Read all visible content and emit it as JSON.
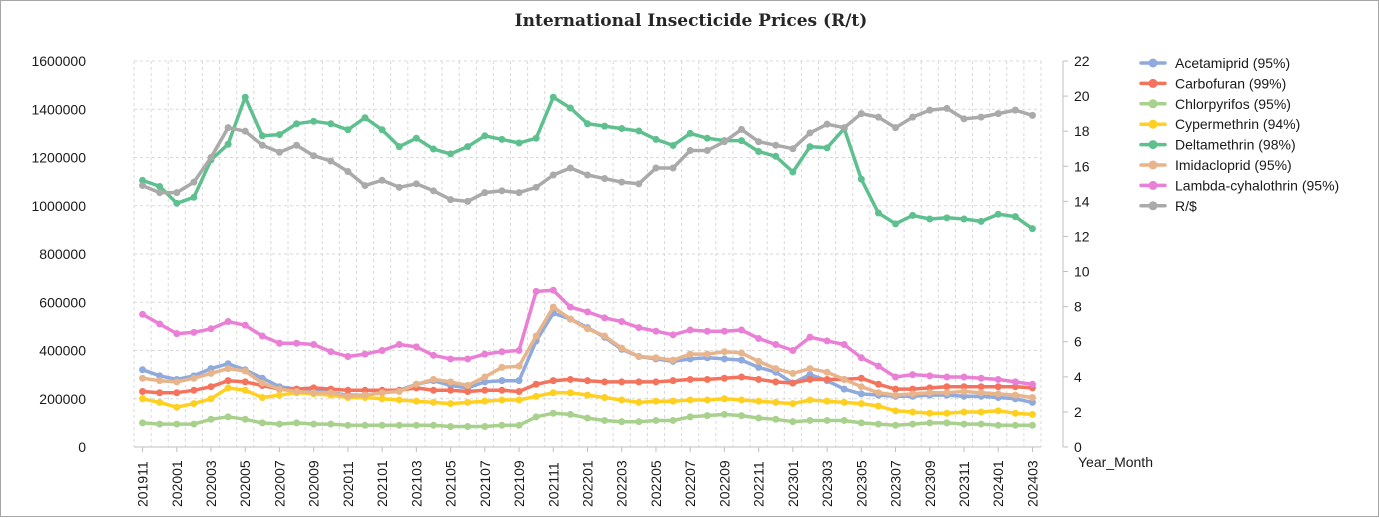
{
  "chart_data": {
    "type": "line",
    "title": "International Insecticide Prices (R/t)",
    "xlabel": "Year_Month",
    "ylabel": "",
    "y2label": "",
    "ylim": [
      0,
      1600000
    ],
    "yticks": [
      0,
      200000,
      400000,
      600000,
      800000,
      1000000,
      1200000,
      1400000,
      1600000
    ],
    "y2lim": [
      0,
      22
    ],
    "y2ticks": [
      0,
      2,
      4,
      6,
      8,
      10,
      12,
      14,
      16,
      18,
      20,
      22
    ],
    "grid": true,
    "legend_position": "right",
    "x": [
      "201911",
      "201912",
      "202001",
      "202002",
      "202003",
      "202004",
      "202005",
      "202006",
      "202007",
      "202008",
      "202009",
      "202010",
      "202011",
      "202012",
      "202101",
      "202102",
      "202103",
      "202104",
      "202105",
      "202106",
      "202107",
      "202108",
      "202109",
      "202110",
      "202111",
      "202112",
      "202201",
      "202202",
      "202203",
      "202204",
      "202205",
      "202206",
      "202207",
      "202208",
      "202209",
      "202210",
      "202211",
      "202212",
      "202301",
      "202302",
      "202303",
      "202304",
      "202305",
      "202306",
      "202307",
      "202308",
      "202309",
      "202310",
      "202311",
      "202312",
      "202401",
      "202402",
      "202403"
    ],
    "x_tick_labels": [
      "201911",
      "202001",
      "202003",
      "202005",
      "202007",
      "202009",
      "202011",
      "202101",
      "202103",
      "202105",
      "202107",
      "202109",
      "202111",
      "202201",
      "202203",
      "202205",
      "202207",
      "202209",
      "202211",
      "202301",
      "202303",
      "202305",
      "202307",
      "202309",
      "202311",
      "202401",
      "202403"
    ],
    "series": [
      {
        "name": "Acetamiprid (95%)",
        "axis": "left",
        "color": "#8faadc",
        "values": [
          320000,
          295000,
          280000,
          295000,
          325000,
          345000,
          320000,
          285000,
          250000,
          240000,
          235000,
          225000,
          215000,
          215000,
          225000,
          235000,
          260000,
          275000,
          255000,
          245000,
          270000,
          275000,
          275000,
          440000,
          555000,
          530000,
          495000,
          455000,
          405000,
          375000,
          365000,
          355000,
          365000,
          370000,
          365000,
          360000,
          330000,
          310000,
          265000,
          300000,
          275000,
          240000,
          220000,
          215000,
          210000,
          210000,
          215000,
          215000,
          210000,
          210000,
          205000,
          200000,
          185000
        ]
      },
      {
        "name": "Carbofuran (99%)",
        "axis": "left",
        "color": "#f4735c",
        "values": [
          230000,
          225000,
          225000,
          235000,
          250000,
          275000,
          270000,
          255000,
          240000,
          240000,
          245000,
          240000,
          235000,
          235000,
          235000,
          235000,
          245000,
          235000,
          235000,
          230000,
          235000,
          235000,
          230000,
          260000,
          275000,
          280000,
          275000,
          270000,
          270000,
          270000,
          270000,
          275000,
          280000,
          280000,
          285000,
          290000,
          280000,
          270000,
          265000,
          280000,
          280000,
          280000,
          285000,
          260000,
          240000,
          240000,
          245000,
          250000,
          250000,
          250000,
          250000,
          250000,
          245000
        ]
      },
      {
        "name": "Chlorpyrifos (95%)",
        "axis": "left",
        "color": "#a9d18e",
        "values": [
          100000,
          95000,
          95000,
          95000,
          115000,
          125000,
          115000,
          100000,
          95000,
          100000,
          95000,
          95000,
          90000,
          90000,
          90000,
          90000,
          90000,
          90000,
          85000,
          85000,
          85000,
          90000,
          90000,
          125000,
          140000,
          135000,
          120000,
          110000,
          105000,
          105000,
          110000,
          110000,
          125000,
          130000,
          135000,
          130000,
          120000,
          115000,
          105000,
          110000,
          110000,
          110000,
          100000,
          95000,
          90000,
          95000,
          100000,
          100000,
          95000,
          95000,
          90000,
          90000,
          90000
        ]
      },
      {
        "name": "Cypermethrin (94%)",
        "axis": "left",
        "color": "#ffd020",
        "values": [
          200000,
          185000,
          165000,
          180000,
          200000,
          245000,
          235000,
          205000,
          215000,
          225000,
          220000,
          215000,
          205000,
          205000,
          200000,
          195000,
          190000,
          185000,
          180000,
          185000,
          190000,
          195000,
          195000,
          210000,
          225000,
          225000,
          215000,
          205000,
          195000,
          185000,
          190000,
          190000,
          195000,
          195000,
          200000,
          195000,
          190000,
          185000,
          180000,
          195000,
          190000,
          185000,
          180000,
          170000,
          150000,
          145000,
          140000,
          140000,
          145000,
          145000,
          150000,
          140000,
          135000
        ]
      },
      {
        "name": "Deltamethrin (98%)",
        "axis": "left",
        "color": "#5fc08f",
        "values": [
          1105000,
          1080000,
          1010000,
          1035000,
          1190000,
          1255000,
          1450000,
          1290000,
          1295000,
          1340000,
          1350000,
          1340000,
          1315000,
          1365000,
          1315000,
          1245000,
          1280000,
          1235000,
          1215000,
          1245000,
          1290000,
          1275000,
          1260000,
          1280000,
          1450000,
          1405000,
          1340000,
          1330000,
          1320000,
          1310000,
          1275000,
          1250000,
          1300000,
          1280000,
          1270000,
          1270000,
          1225000,
          1205000,
          1140000,
          1245000,
          1240000,
          1320000,
          1110000,
          970000,
          925000,
          960000,
          945000,
          950000,
          945000,
          935000,
          965000,
          955000,
          905000
        ]
      },
      {
        "name": "Imidacloprid (95%)",
        "axis": "left",
        "color": "#e8b48c",
        "values": [
          285000,
          275000,
          270000,
          285000,
          305000,
          325000,
          315000,
          265000,
          240000,
          230000,
          225000,
          225000,
          210000,
          215000,
          225000,
          230000,
          260000,
          280000,
          270000,
          255000,
          290000,
          330000,
          335000,
          460000,
          580000,
          530000,
          490000,
          460000,
          410000,
          375000,
          370000,
          360000,
          385000,
          385000,
          395000,
          390000,
          355000,
          325000,
          305000,
          325000,
          310000,
          280000,
          250000,
          225000,
          215000,
          220000,
          225000,
          225000,
          230000,
          225000,
          220000,
          215000,
          205000
        ]
      },
      {
        "name": "Lambda-cyhalothrin (95%)",
        "axis": "left",
        "color": "#ea80d6",
        "values": [
          550000,
          510000,
          470000,
          475000,
          490000,
          520000,
          505000,
          460000,
          430000,
          430000,
          425000,
          395000,
          375000,
          385000,
          400000,
          425000,
          415000,
          380000,
          365000,
          365000,
          385000,
          395000,
          400000,
          645000,
          650000,
          580000,
          560000,
          535000,
          520000,
          495000,
          480000,
          465000,
          485000,
          480000,
          480000,
          485000,
          450000,
          425000,
          400000,
          455000,
          440000,
          425000,
          370000,
          335000,
          290000,
          300000,
          295000,
          290000,
          290000,
          285000,
          280000,
          270000,
          260000
        ]
      },
      {
        "name": "R/$",
        "axis": "right",
        "color": "#aaaaaa",
        "values": [
          14.9,
          14.5,
          14.5,
          15.1,
          16.5,
          18.2,
          18.0,
          17.2,
          16.8,
          17.2,
          16.6,
          16.3,
          15.7,
          14.9,
          15.2,
          14.8,
          15.0,
          14.6,
          14.1,
          14.0,
          14.5,
          14.6,
          14.5,
          14.8,
          15.5,
          15.9,
          15.5,
          15.3,
          15.1,
          15.0,
          15.9,
          15.9,
          16.9,
          16.9,
          17.4,
          18.1,
          17.4,
          17.2,
          17.0,
          17.9,
          18.4,
          18.2,
          19.0,
          18.8,
          18.2,
          18.8,
          19.2,
          19.3,
          18.7,
          18.8,
          19.0,
          19.2,
          18.9
        ]
      }
    ]
  }
}
